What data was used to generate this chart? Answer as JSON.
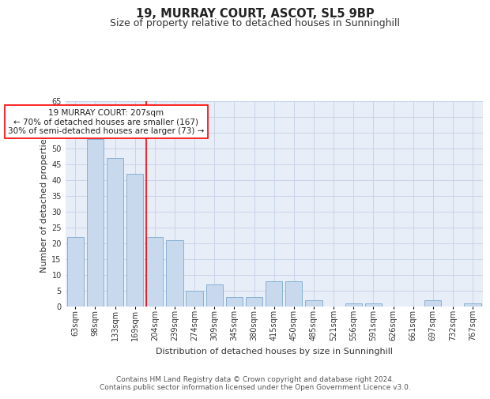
{
  "title": "19, MURRAY COURT, ASCOT, SL5 9BP",
  "subtitle": "Size of property relative to detached houses in Sunninghill",
  "xlabel": "Distribution of detached houses by size in Sunninghill",
  "ylabel": "Number of detached properties",
  "categories": [
    "63sqm",
    "98sqm",
    "133sqm",
    "169sqm",
    "204sqm",
    "239sqm",
    "274sqm",
    "309sqm",
    "345sqm",
    "380sqm",
    "415sqm",
    "450sqm",
    "485sqm",
    "521sqm",
    "556sqm",
    "591sqm",
    "626sqm",
    "661sqm",
    "697sqm",
    "732sqm",
    "767sqm"
  ],
  "values": [
    22,
    53,
    47,
    42,
    22,
    21,
    5,
    7,
    3,
    3,
    8,
    8,
    2,
    0,
    1,
    1,
    0,
    0,
    2,
    0,
    1
  ],
  "bar_color": "#c8d9ee",
  "bar_edge_color": "#7aaacc",
  "grid_color": "#c8d4e8",
  "plot_background": "#e8eef8",
  "annotation_line1": "19 MURRAY COURT: 207sqm",
  "annotation_line2": "← 70% of detached houses are smaller (167)",
  "annotation_line3": "30% of semi-detached houses are larger (73) →",
  "property_bar_index": 4,
  "ylim": [
    0,
    65
  ],
  "yticks": [
    0,
    5,
    10,
    15,
    20,
    25,
    30,
    35,
    40,
    45,
    50,
    55,
    60,
    65
  ],
  "footer_line1": "Contains HM Land Registry data © Crown copyright and database right 2024.",
  "footer_line2": "Contains public sector information licensed under the Open Government Licence v3.0.",
  "annotation_fontsize": 7.5,
  "title_fontsize": 10.5,
  "subtitle_fontsize": 9,
  "axis_label_fontsize": 8,
  "tick_fontsize": 7,
  "footer_fontsize": 6.5
}
